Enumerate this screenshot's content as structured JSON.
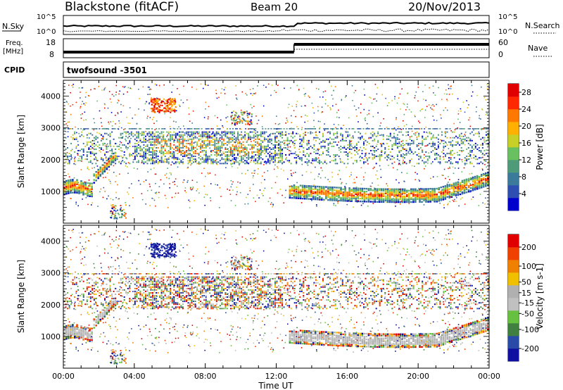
{
  "header": {
    "station": "Blackstone (fitACF)",
    "beam": "Beam 20",
    "date": "20/Nov/2013"
  },
  "panels": {
    "nsky": {
      "label": "N.Sky",
      "ticks": [
        "10^5",
        "10^0"
      ]
    },
    "nsearch": {
      "label": "N.Search",
      "ticks": [
        "10^5",
        "10^0"
      ]
    },
    "freq": {
      "label_line1": "Freq.",
      "label_line2": "[MHz]",
      "ticks": [
        "18",
        "8"
      ]
    },
    "nave": {
      "label": "Nave",
      "ticks": [
        "60",
        "0"
      ]
    },
    "cpid": {
      "label": "CPID",
      "value": "twofsound  -3501"
    }
  },
  "colors": {
    "power_scale": [
      "#0000cc",
      "#2f4fb0",
      "#3c7a9c",
      "#4f9a78",
      "#68c060",
      "#c8d028",
      "#ffb000",
      "#ff7800",
      "#ff2800",
      "#e00000"
    ],
    "velocity_scale": [
      "#1010a0",
      "#2a4aa8",
      "#3f7f3f",
      "#68c040",
      "#c0c0c0",
      "#b0b0b0",
      "#f0c000",
      "#f08000",
      "#f04000",
      "#e00000"
    ]
  },
  "chart_data": [
    {
      "type": "heatmap",
      "title": "",
      "xlabel": "Time UT",
      "ylabel": "Slant Range [km]",
      "x_ticks": [
        "00:00",
        "04:00",
        "08:00",
        "12:00",
        "16:00",
        "20:00",
        "00:00"
      ],
      "y_ticks": [
        "1000",
        "2000",
        "3000",
        "4000"
      ],
      "ylim": [
        0,
        4500
      ],
      "colorbar": {
        "label": "Power [dB]",
        "ticks": [
          "28",
          "24",
          "20",
          "16",
          "12",
          "8",
          "4"
        ],
        "range": [
          0,
          30
        ]
      }
    },
    {
      "type": "heatmap",
      "title": "",
      "xlabel": "Time UT",
      "ylabel": "Slant Range [km]",
      "x_ticks": [
        "00:00",
        "04:00",
        "08:00",
        "12:00",
        "16:00",
        "20:00",
        "00:00"
      ],
      "y_ticks": [
        "1000",
        "2000",
        "3000",
        "4000"
      ],
      "ylim": [
        0,
        4500
      ],
      "colorbar": {
        "label": "Velocity [m s-1]",
        "ticks": [
          "200",
          "100",
          "50",
          "15",
          "-15",
          "-50",
          "-100",
          "-200"
        ],
        "range": [
          -250,
          250
        ]
      }
    }
  ]
}
